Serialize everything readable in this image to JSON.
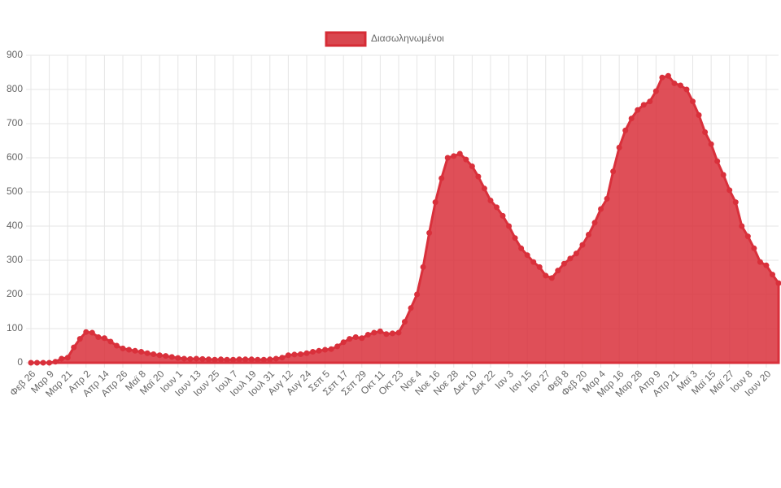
{
  "chart_data": {
    "type": "area",
    "series": [
      {
        "name": "Διασωληνωμένοι",
        "color": "#d9303b",
        "values": [
          0,
          0,
          0,
          0,
          3,
          12,
          15,
          45,
          70,
          90,
          88,
          75,
          72,
          62,
          50,
          42,
          38,
          35,
          32,
          28,
          25,
          22,
          20,
          17,
          14,
          12,
          11,
          12,
          11,
          10,
          9,
          10,
          9,
          9,
          10,
          10,
          10,
          9,
          9,
          10,
          12,
          15,
          22,
          24,
          25,
          28,
          32,
          35,
          38,
          40,
          48,
          60,
          70,
          75,
          72,
          82,
          88,
          92,
          84,
          86,
          88,
          120,
          160,
          200,
          280,
          380,
          470,
          540,
          600,
          605,
          612,
          595,
          575,
          545,
          510,
          475,
          455,
          430,
          400,
          365,
          335,
          315,
          295,
          280,
          255,
          248,
          270,
          290,
          305,
          320,
          345,
          375,
          410,
          450,
          480,
          560,
          630,
          680,
          715,
          740,
          755,
          765,
          795,
          835,
          840,
          818,
          812,
          800,
          765,
          725,
          675,
          640,
          590,
          550,
          505,
          470,
          400,
          370,
          335,
          295,
          285,
          258,
          233
        ]
      }
    ],
    "categories": [
      "Φεβ 26",
      null,
      null,
      "Μαρ 9",
      null,
      null,
      "Μαρ 21",
      null,
      null,
      "Απρ 2",
      null,
      null,
      "Απρ 14",
      null,
      null,
      "Απρ 26",
      null,
      null,
      "Μαϊ 8",
      null,
      null,
      "Μαϊ 20",
      null,
      null,
      "Ιουν 1",
      null,
      null,
      "Ιουν 13",
      null,
      null,
      "Ιουν 25",
      null,
      null,
      "Ιουλ 7",
      null,
      null,
      "Ιουλ 19",
      null,
      null,
      "Ιουλ 31",
      null,
      null,
      "Αυγ 12",
      null,
      null,
      "Αυγ 24",
      null,
      null,
      "Σεπ 5",
      null,
      null,
      "Σεπ 17",
      null,
      null,
      "Σεπ 29",
      null,
      null,
      "Οκτ 11",
      null,
      null,
      "Οκτ 23",
      null,
      null,
      "Νοε 4",
      null,
      null,
      "Νοε 16",
      null,
      null,
      "Νοε 28",
      null,
      null,
      "Δεκ 10",
      null,
      null,
      "Δεκ 22",
      null,
      null,
      "Ιαν 3",
      null,
      null,
      "Ιαν 15",
      null,
      null,
      "Ιαν 27",
      null,
      null,
      "Φεβ 8",
      null,
      null,
      "Φεβ 20",
      null,
      null,
      "Μαρ 4",
      null,
      null,
      "Μαρ 16",
      null,
      null,
      "Μαρ 28",
      null,
      null,
      "Απρ 9",
      null,
      null,
      "Απρ 21",
      null,
      null,
      "Μαϊ 3",
      null,
      null,
      "Μαϊ 15",
      null,
      null,
      "Μαϊ 27",
      null,
      null,
      "Ιουν 8",
      null,
      null,
      "Ιουν 20",
      null,
      null
    ],
    "ylim": [
      0,
      900
    ],
    "yticks": [
      0,
      100,
      200,
      300,
      400,
      500,
      600,
      700,
      800,
      900
    ],
    "grid": true,
    "legend": "top"
  }
}
